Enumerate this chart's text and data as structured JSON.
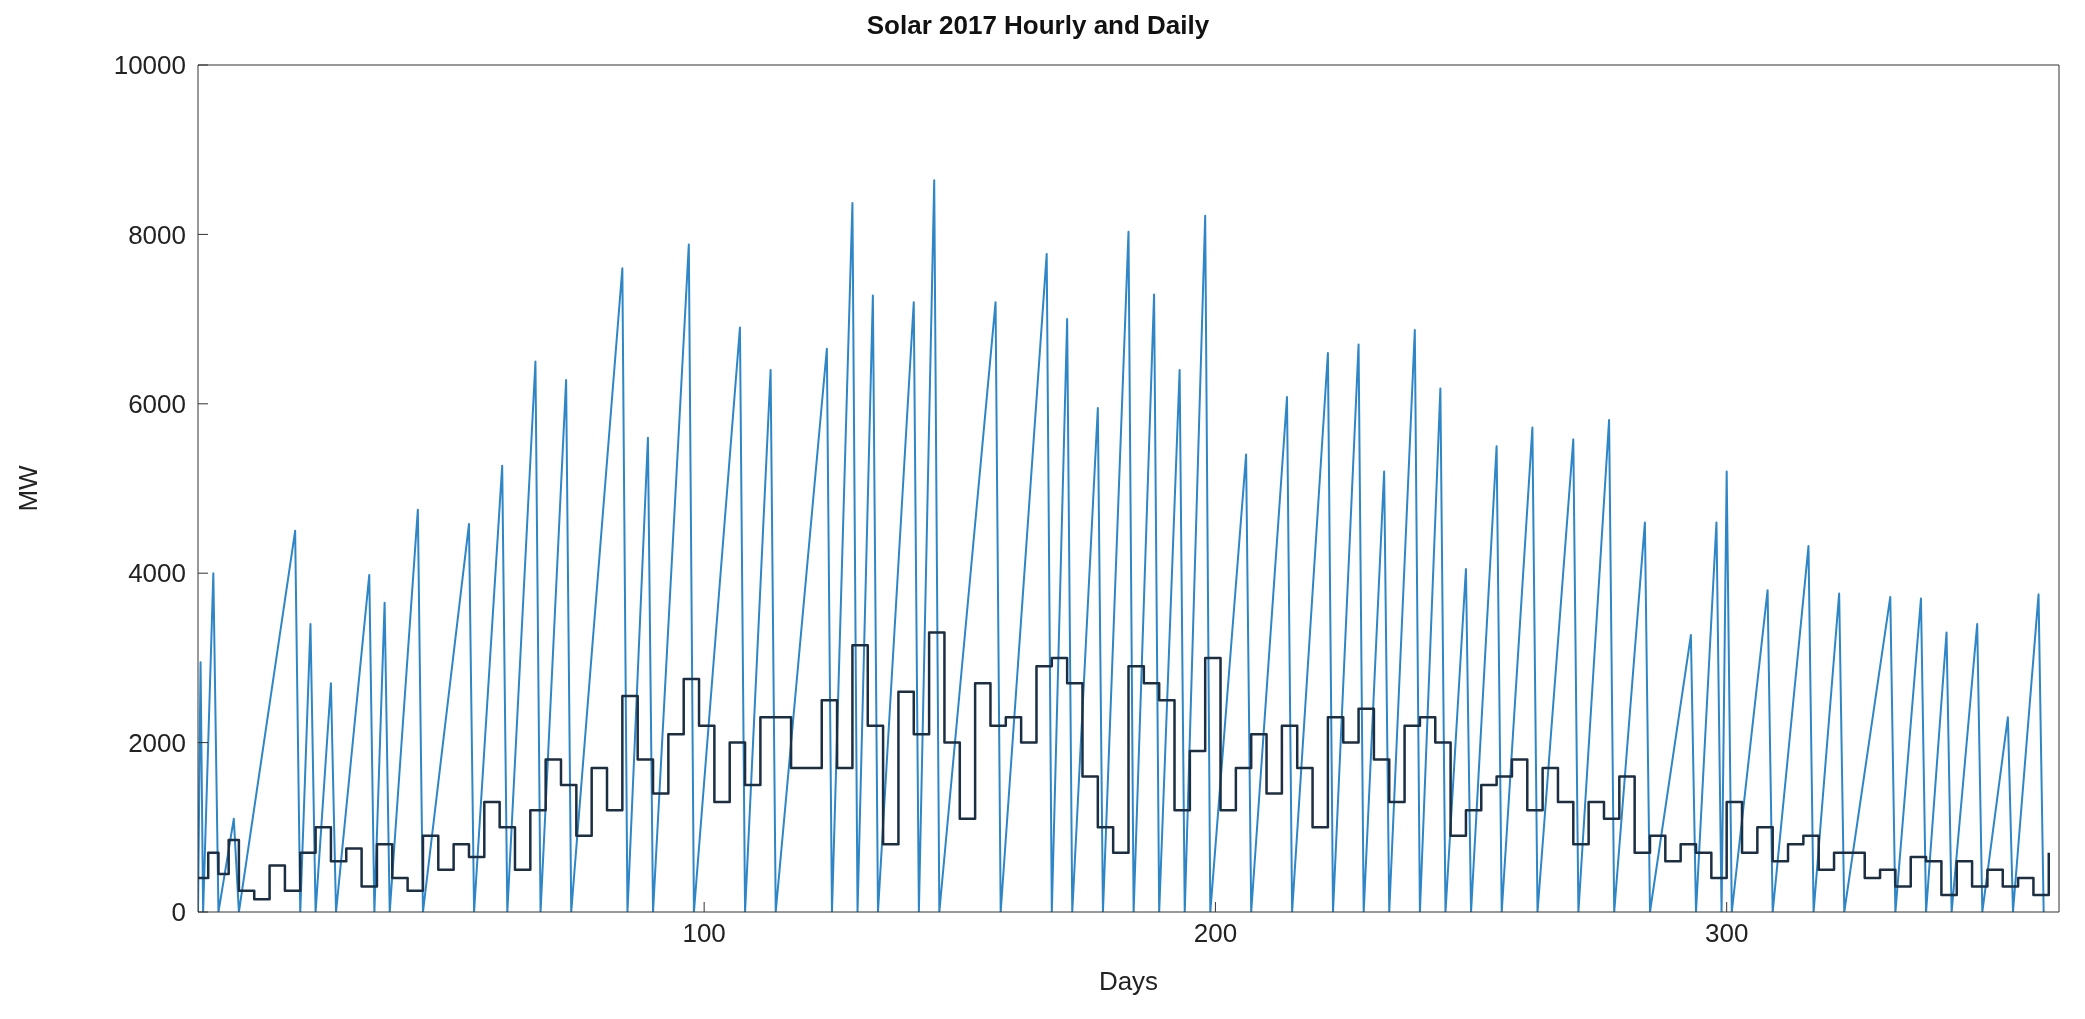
{
  "chart_data": {
    "type": "line",
    "title": "Solar 2017 Hourly and Daily",
    "xlabel": "Days",
    "ylabel": "MW",
    "xlim": [
      1,
      365
    ],
    "xticks": [
      100,
      200,
      300
    ],
    "ylim": [
      0,
      10000
    ],
    "yticks": [
      0,
      2000,
      4000,
      6000,
      8000,
      10000
    ],
    "grid": false,
    "legend": false,
    "marker": "none",
    "line_style": "solid",
    "series": [
      {
        "type": "line",
        "color": "#2f86c6",
        "x": [
          1,
          1.5,
          2,
          4,
          5,
          8,
          9,
          20,
          21,
          23,
          24,
          27,
          28,
          34.5,
          35.5,
          37.5,
          38.5,
          44,
          45,
          54,
          55,
          60.5,
          61.5,
          67,
          68,
          73,
          74,
          84,
          85,
          89,
          90,
          97,
          98,
          107,
          108,
          113,
          114,
          124,
          125,
          129,
          130,
          133,
          134,
          141,
          142,
          145,
          146,
          157,
          158,
          167,
          168,
          171,
          172,
          177,
          178,
          183,
          184,
          188,
          189,
          193,
          194,
          198,
          199,
          206,
          207,
          214,
          215,
          222,
          223,
          228,
          229,
          233,
          234,
          239,
          240,
          244,
          245,
          249,
          250,
          255,
          256,
          262,
          263,
          270,
          271,
          277,
          278,
          284,
          285,
          293,
          294,
          298,
          299,
          300,
          301,
          308,
          309,
          316,
          317,
          322,
          323,
          332,
          333,
          338,
          339,
          343,
          344,
          349,
          350,
          355,
          356,
          361,
          362
        ],
        "values": [
          0,
          2950,
          0,
          4000,
          0,
          1100,
          0,
          4500,
          0,
          3400,
          0,
          2700,
          0,
          3980,
          0,
          3650,
          0,
          4750,
          0,
          4580,
          0,
          5270,
          0,
          6500,
          0,
          6280,
          0,
          7600,
          0,
          5600,
          0,
          7880,
          0,
          6900,
          0,
          6400,
          0,
          6650,
          0,
          8370,
          0,
          7280,
          0,
          7200,
          0,
          8640,
          0,
          7200,
          0,
          7770,
          0,
          7000,
          0,
          5950,
          0,
          8030,
          0,
          7290,
          0,
          6400,
          0,
          8220,
          0,
          5400,
          0,
          6080,
          0,
          6600,
          0,
          6700,
          0,
          5200,
          0,
          6870,
          0,
          6180,
          0,
          4050,
          0,
          5500,
          0,
          5720,
          0,
          5580,
          0,
          5810,
          0,
          4600,
          0,
          3270,
          0,
          4600,
          0,
          5200,
          0,
          3800,
          0,
          4320,
          0,
          3760,
          0,
          3720,
          0,
          3700,
          0,
          3300,
          0,
          3400,
          0,
          2300,
          0,
          3750,
          0
        ]
      },
      {
        "type": "step",
        "color": "#1b2e42",
        "x": [
          1,
          3,
          5,
          7,
          9,
          12,
          15,
          18,
          21,
          24,
          27,
          30,
          33,
          36,
          39,
          42,
          45,
          48,
          51,
          54,
          57,
          60,
          63,
          66,
          69,
          72,
          75,
          78,
          81,
          84,
          87,
          90,
          93,
          96,
          99,
          102,
          105,
          108,
          111,
          114,
          117,
          120,
          123,
          126,
          129,
          132,
          135,
          138,
          141,
          144,
          147,
          150,
          153,
          156,
          159,
          162,
          165,
          168,
          171,
          174,
          177,
          180,
          183,
          186,
          189,
          192,
          195,
          198,
          201,
          204,
          207,
          210,
          213,
          216,
          219,
          222,
          225,
          228,
          231,
          234,
          237,
          240,
          243,
          246,
          249,
          252,
          255,
          258,
          261,
          264,
          267,
          270,
          273,
          276,
          279,
          282,
          285,
          288,
          291,
          294,
          297,
          300,
          303,
          306,
          309,
          312,
          315,
          318,
          321,
          324,
          327,
          330,
          333,
          336,
          339,
          342,
          345,
          348,
          351,
          354,
          357,
          360,
          363
        ],
        "values": [
          400,
          700,
          450,
          850,
          250,
          150,
          550,
          250,
          700,
          1000,
          600,
          750,
          300,
          800,
          400,
          250,
          900,
          500,
          800,
          650,
          1300,
          1000,
          500,
          1200,
          1800,
          1500,
          900,
          1700,
          1200,
          2550,
          1800,
          1400,
          2100,
          2750,
          2200,
          1300,
          2000,
          1500,
          2300,
          2300,
          1700,
          1700,
          2500,
          1700,
          3150,
          2200,
          800,
          2600,
          2100,
          3300,
          2000,
          1100,
          2700,
          2200,
          2300,
          2000,
          2900,
          3000,
          2700,
          1600,
          1000,
          700,
          2900,
          2700,
          2500,
          1200,
          1900,
          3000,
          1200,
          1700,
          2100,
          1400,
          2200,
          1700,
          1000,
          2300,
          2000,
          2400,
          1800,
          1300,
          2200,
          2300,
          2000,
          900,
          1200,
          1500,
          1600,
          1800,
          1200,
          1700,
          1300,
          800,
          1300,
          1100,
          1600,
          700,
          900,
          600,
          800,
          700,
          400,
          1300,
          700,
          1000,
          600,
          800,
          900,
          500,
          700,
          700,
          400,
          500,
          300,
          650,
          600,
          200,
          600,
          300,
          500,
          300,
          400,
          200,
          700
        ]
      }
    ]
  }
}
